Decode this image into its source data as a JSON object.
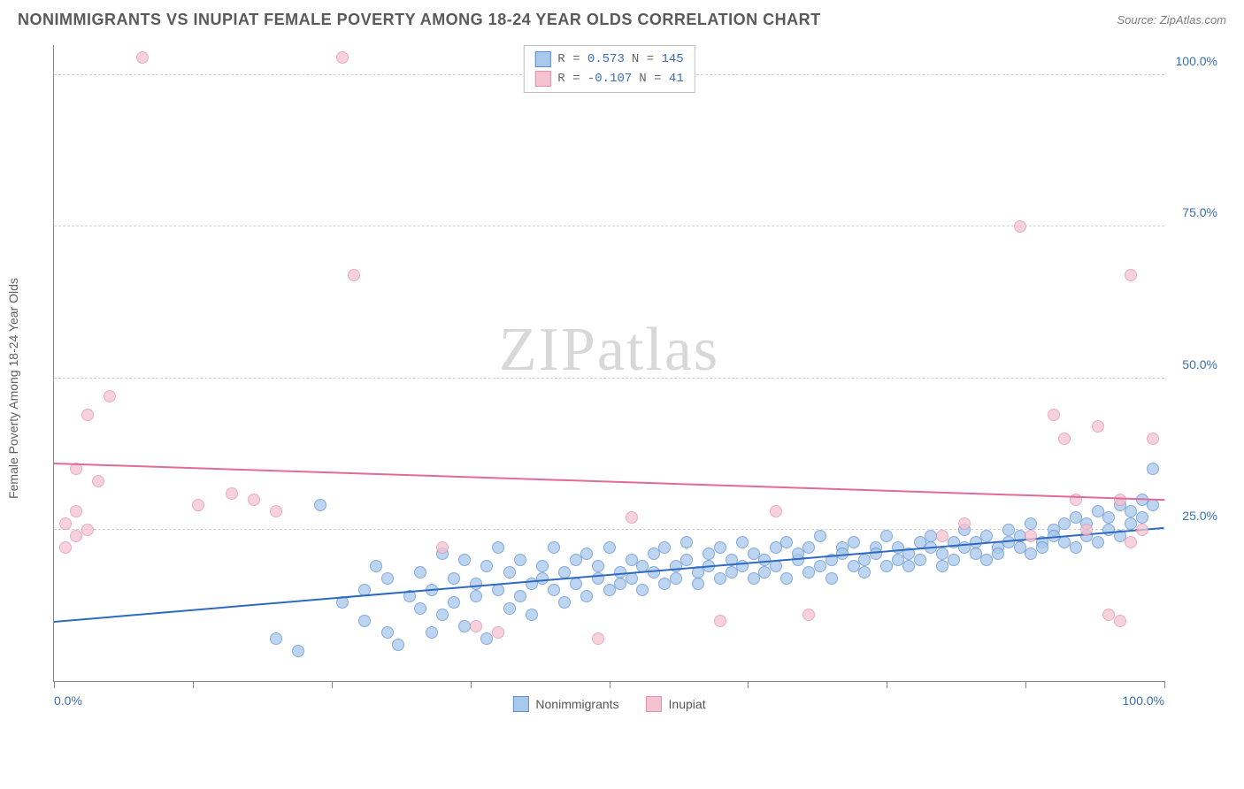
{
  "title": "NONIMMIGRANTS VS INUPIAT FEMALE POVERTY AMONG 18-24 YEAR OLDS CORRELATION CHART",
  "source": "Source: ZipAtlas.com",
  "y_axis_label": "Female Poverty Among 18-24 Year Olds",
  "watermark_zip": "ZIP",
  "watermark_atlas": "atlas",
  "chart": {
    "type": "scatter",
    "xlim": [
      0,
      100
    ],
    "ylim": [
      0,
      105
    ],
    "y_ticks": [
      25,
      50,
      75,
      100
    ],
    "y_tick_labels": [
      "25.0%",
      "50.0%",
      "75.0%",
      "100.0%"
    ],
    "x_ticks": [
      0,
      12.5,
      25,
      37.5,
      50,
      62.5,
      75,
      87.5,
      100
    ],
    "x_tick_labels_shown": {
      "0": "0.0%",
      "100": "100.0%"
    },
    "background_color": "#ffffff",
    "grid_color": "#d0d0d0",
    "axis_color": "#888888"
  },
  "series": [
    {
      "name": "Nonimmigrants",
      "color_fill": "#a8c8ec",
      "color_stroke": "#5b8fd0",
      "marker_size": 14,
      "opacity": 0.75,
      "trend": {
        "x1": 0,
        "y1": 10,
        "x2": 100,
        "y2": 25.5,
        "color": "#2e6bc0",
        "width": 2
      },
      "stats": {
        "R": "0.573",
        "N": "145"
      },
      "points": [
        [
          20,
          7
        ],
        [
          22,
          5
        ],
        [
          24,
          29
        ],
        [
          26,
          13
        ],
        [
          28,
          15
        ],
        [
          28,
          10
        ],
        [
          29,
          19
        ],
        [
          30,
          8
        ],
        [
          30,
          17
        ],
        [
          31,
          6
        ],
        [
          32,
          14
        ],
        [
          33,
          12
        ],
        [
          33,
          18
        ],
        [
          34,
          8
        ],
        [
          34,
          15
        ],
        [
          35,
          11
        ],
        [
          35,
          21
        ],
        [
          36,
          13
        ],
        [
          36,
          17
        ],
        [
          37,
          9
        ],
        [
          37,
          20
        ],
        [
          38,
          14
        ],
        [
          38,
          16
        ],
        [
          39,
          19
        ],
        [
          39,
          7
        ],
        [
          40,
          15
        ],
        [
          40,
          22
        ],
        [
          41,
          12
        ],
        [
          41,
          18
        ],
        [
          42,
          14
        ],
        [
          42,
          20
        ],
        [
          43,
          16
        ],
        [
          43,
          11
        ],
        [
          44,
          17
        ],
        [
          44,
          19
        ],
        [
          45,
          15
        ],
        [
          45,
          22
        ],
        [
          46,
          13
        ],
        [
          46,
          18
        ],
        [
          47,
          20
        ],
        [
          47,
          16
        ],
        [
          48,
          14
        ],
        [
          48,
          21
        ],
        [
          49,
          17
        ],
        [
          49,
          19
        ],
        [
          50,
          15
        ],
        [
          50,
          22
        ],
        [
          51,
          18
        ],
        [
          51,
          16
        ],
        [
          52,
          20
        ],
        [
          52,
          17
        ],
        [
          53,
          19
        ],
        [
          53,
          15
        ],
        [
          54,
          21
        ],
        [
          54,
          18
        ],
        [
          55,
          16
        ],
        [
          55,
          22
        ],
        [
          56,
          19
        ],
        [
          56,
          17
        ],
        [
          57,
          20
        ],
        [
          57,
          23
        ],
        [
          58,
          18
        ],
        [
          58,
          16
        ],
        [
          59,
          21
        ],
        [
          59,
          19
        ],
        [
          60,
          17
        ],
        [
          60,
          22
        ],
        [
          61,
          20
        ],
        [
          61,
          18
        ],
        [
          62,
          23
        ],
        [
          62,
          19
        ],
        [
          63,
          17
        ],
        [
          63,
          21
        ],
        [
          64,
          20
        ],
        [
          64,
          18
        ],
        [
          65,
          22
        ],
        [
          65,
          19
        ],
        [
          66,
          17
        ],
        [
          66,
          23
        ],
        [
          67,
          20
        ],
        [
          67,
          21
        ],
        [
          68,
          18
        ],
        [
          68,
          22
        ],
        [
          69,
          19
        ],
        [
          69,
          24
        ],
        [
          70,
          20
        ],
        [
          70,
          17
        ],
        [
          71,
          22
        ],
        [
          71,
          21
        ],
        [
          72,
          19
        ],
        [
          72,
          23
        ],
        [
          73,
          20
        ],
        [
          73,
          18
        ],
        [
          74,
          22
        ],
        [
          74,
          21
        ],
        [
          75,
          19
        ],
        [
          75,
          24
        ],
        [
          76,
          20
        ],
        [
          76,
          22
        ],
        [
          77,
          21
        ],
        [
          77,
          19
        ],
        [
          78,
          23
        ],
        [
          78,
          20
        ],
        [
          79,
          22
        ],
        [
          79,
          24
        ],
        [
          80,
          21
        ],
        [
          80,
          19
        ],
        [
          81,
          23
        ],
        [
          81,
          20
        ],
        [
          82,
          22
        ],
        [
          82,
          25
        ],
        [
          83,
          21
        ],
        [
          83,
          23
        ],
        [
          84,
          20
        ],
        [
          84,
          24
        ],
        [
          85,
          22
        ],
        [
          85,
          21
        ],
        [
          86,
          23
        ],
        [
          86,
          25
        ],
        [
          87,
          22
        ],
        [
          87,
          24
        ],
        [
          88,
          21
        ],
        [
          88,
          26
        ],
        [
          89,
          23
        ],
        [
          89,
          22
        ],
        [
          90,
          25
        ],
        [
          90,
          24
        ],
        [
          91,
          23
        ],
        [
          91,
          26
        ],
        [
          92,
          22
        ],
        [
          92,
          27
        ],
        [
          93,
          24
        ],
        [
          93,
          26
        ],
        [
          94,
          23
        ],
        [
          94,
          28
        ],
        [
          95,
          25
        ],
        [
          95,
          27
        ],
        [
          96,
          24
        ],
        [
          96,
          29
        ],
        [
          97,
          26
        ],
        [
          97,
          28
        ],
        [
          98,
          30
        ],
        [
          98,
          27
        ],
        [
          99,
          35
        ],
        [
          99,
          29
        ]
      ]
    },
    {
      "name": "Inupiat",
      "color_fill": "#f5c2d1",
      "color_stroke": "#e38fae",
      "marker_size": 14,
      "opacity": 0.75,
      "trend": {
        "x1": 0,
        "y1": 36,
        "x2": 100,
        "y2": 30,
        "color": "#e36a9a",
        "width": 2
      },
      "stats": {
        "R": "-0.107",
        "N": "41"
      },
      "points": [
        [
          1,
          26
        ],
        [
          1,
          22
        ],
        [
          2,
          28
        ],
        [
          2,
          24
        ],
        [
          2,
          35
        ],
        [
          3,
          44
        ],
        [
          3,
          25
        ],
        [
          4,
          33
        ],
        [
          5,
          47
        ],
        [
          8,
          103
        ],
        [
          13,
          29
        ],
        [
          16,
          31
        ],
        [
          18,
          30
        ],
        [
          20,
          28
        ],
        [
          26,
          103
        ],
        [
          27,
          67
        ],
        [
          35,
          22
        ],
        [
          38,
          9
        ],
        [
          40,
          8
        ],
        [
          44,
          103
        ],
        [
          49,
          7
        ],
        [
          52,
          27
        ],
        [
          60,
          10
        ],
        [
          65,
          28
        ],
        [
          68,
          11
        ],
        [
          80,
          24
        ],
        [
          82,
          26
        ],
        [
          87,
          75
        ],
        [
          88,
          24
        ],
        [
          90,
          44
        ],
        [
          91,
          40
        ],
        [
          92,
          30
        ],
        [
          93,
          25
        ],
        [
          94,
          42
        ],
        [
          95,
          11
        ],
        [
          96,
          10
        ],
        [
          96,
          30
        ],
        [
          97,
          67
        ],
        [
          97,
          23
        ],
        [
          98,
          25
        ],
        [
          99,
          40
        ]
      ]
    }
  ],
  "legend_top": {
    "r_label": "R =",
    "n_label": "N ="
  },
  "legend_bottom": [
    {
      "label": "Nonimmigrants",
      "fill": "#a8c8ec",
      "stroke": "#5b8fd0"
    },
    {
      "label": "Inupiat",
      "fill": "#f5c2d1",
      "stroke": "#e38fae"
    }
  ]
}
